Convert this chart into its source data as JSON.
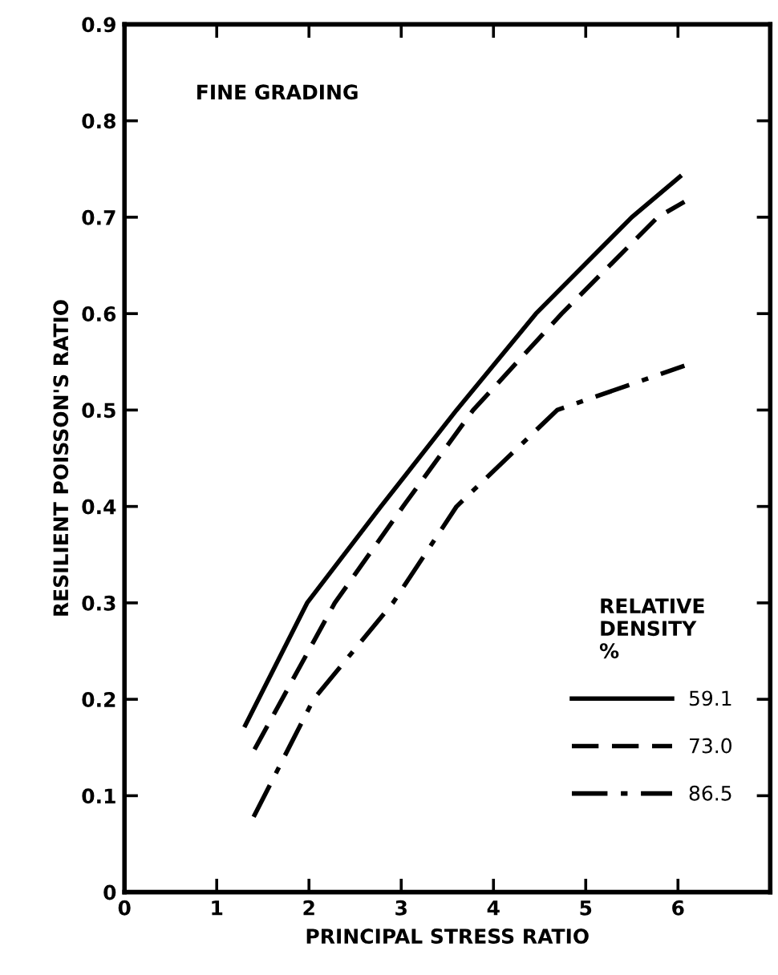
{
  "chart_data": {
    "type": "line",
    "xlabel": "PRINCIPAL STRESS RATIO",
    "ylabel": "RESILIENT POISSON'S RATIO",
    "annotations": [
      "FINE GRADING"
    ],
    "legend_title": "RELATIVE\nDENSITY\n%",
    "series": [
      {
        "name": "59.1",
        "color": "#000000",
        "line_style": "solid",
        "x": [
          1.31,
          1.98,
          2.78,
          3.6,
          4.46,
          5.5,
          6.02
        ],
        "values": [
          0.173,
          0.3,
          0.4,
          0.5,
          0.6,
          0.7,
          0.742
        ]
      },
      {
        "name": "73.0",
        "color": "#000000",
        "line_style": "dashed",
        "x": [
          1.41,
          2.28,
          3.02,
          3.78,
          4.74,
          5.78,
          6.07
        ],
        "values": [
          0.148,
          0.3,
          0.4,
          0.5,
          0.6,
          0.7,
          0.716
        ]
      },
      {
        "name": "86.5",
        "color": "#000000",
        "line_style": "dashdot",
        "x": [
          1.4,
          2.05,
          2.91,
          3.6,
          4.69,
          6.07
        ],
        "values": [
          0.078,
          0.2,
          0.3,
          0.4,
          0.5,
          0.546
        ]
      }
    ],
    "xlim": [
      0,
      7
    ],
    "xticks": [
      0,
      1,
      2,
      3,
      4,
      5,
      6
    ],
    "ylim": [
      0,
      0.9
    ],
    "yticks": [
      0,
      0.1,
      0.2,
      0.3,
      0.4,
      0.5,
      0.6,
      0.7,
      0.8,
      0.9
    ],
    "grid": false,
    "legend": "bottom right",
    "marker": "none"
  }
}
